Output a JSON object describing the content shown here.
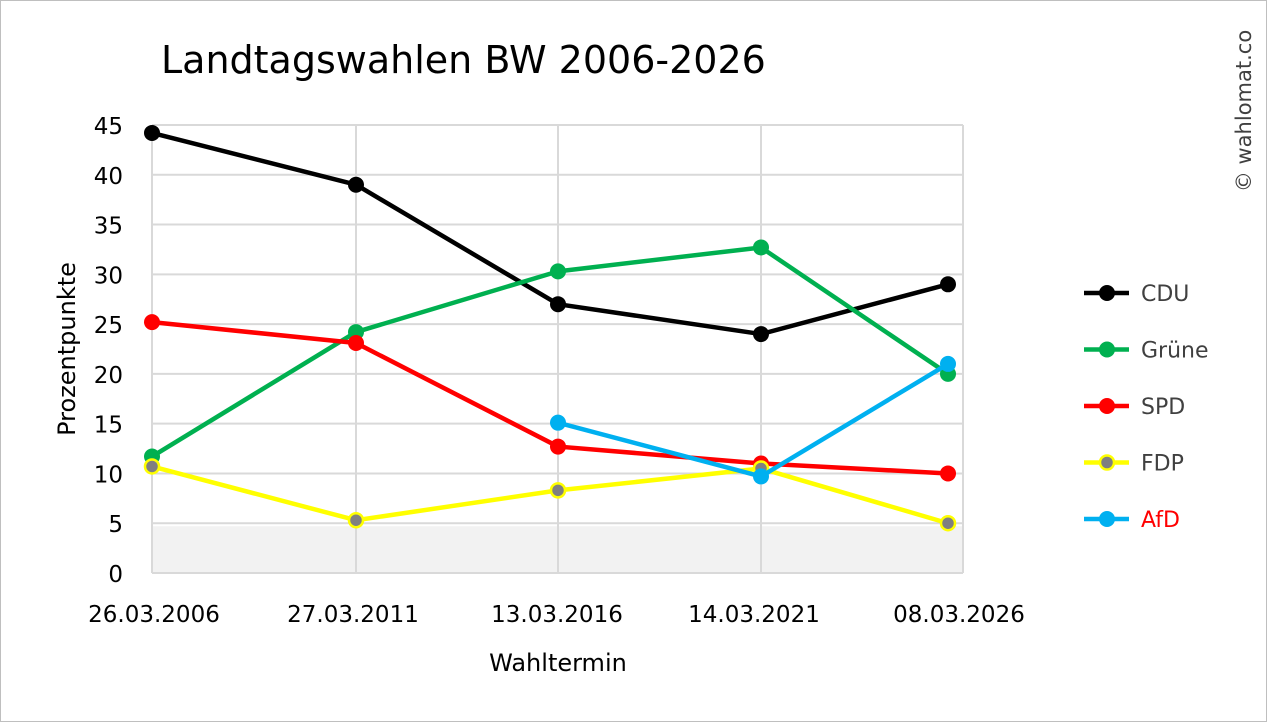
{
  "chart_data": {
    "type": "line",
    "title": "Landtagswahlen BW 2006-2026",
    "xlabel": "Wahltermin",
    "ylabel": "Prozentpunkte",
    "watermark": "© wahlomat.co",
    "categories": [
      "26.03.2006",
      "27.03.2011",
      "13.03.2016",
      "14.03.2021",
      "08.03.2026"
    ],
    "ylim": [
      0,
      45
    ],
    "yticks": [
      "0",
      "5",
      "10",
      "15",
      "20",
      "25",
      "30",
      "35",
      "40",
      "45"
    ],
    "grid": true,
    "legend_position": "right",
    "shaded_band": [
      0,
      5
    ],
    "series": [
      {
        "name": "CDU",
        "color": "#000000",
        "marker": "#000000",
        "label_color": "#404040",
        "values": [
          44.2,
          39.0,
          27.0,
          24.0,
          29.0
        ]
      },
      {
        "name": "Grüne",
        "color": "#00b050",
        "marker": "#00b050",
        "label_color": "#404040",
        "values": [
          11.7,
          24.2,
          30.3,
          32.7,
          20.0
        ]
      },
      {
        "name": "SPD",
        "color": "#ff0000",
        "marker": "#ff0000",
        "label_color": "#404040",
        "values": [
          25.2,
          23.1,
          12.7,
          11.0,
          10.0
        ]
      },
      {
        "name": "FDP",
        "color": "#ffff00",
        "marker": "#808080",
        "label_color": "#404040",
        "values": [
          10.7,
          5.3,
          8.3,
          10.5,
          5.0
        ]
      },
      {
        "name": "AfD",
        "color": "#00b0f0",
        "marker": "#00b0f0",
        "label_color": "#ff0000",
        "values": [
          null,
          null,
          15.1,
          9.7,
          21.0
        ]
      }
    ]
  }
}
